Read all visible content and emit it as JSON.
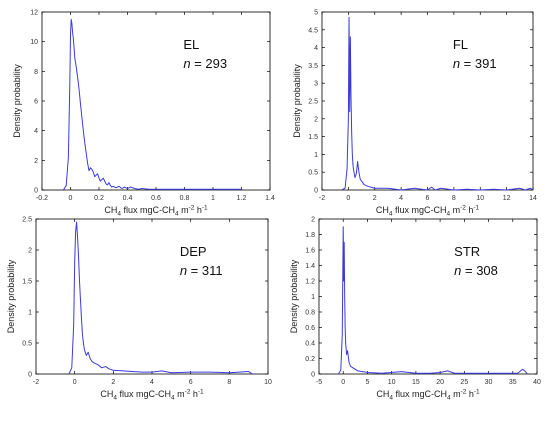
{
  "figure": {
    "x_label_template": "CH4 flux mgC-CH4 m-2 h-1",
    "ylabel": "Density probability"
  },
  "chart_data": [
    {
      "type": "line",
      "site": "EL",
      "n_prefix": "n",
      "n_text": " = 293",
      "xlabel": "CH4 flux mgC-CH4 m-2 h-1",
      "ylabel": "Density probability",
      "xlim": [
        -0.2,
        1.4
      ],
      "ylim": [
        0,
        12
      ],
      "xticks": [
        "-0.2",
        "0",
        "0.2",
        "0.4",
        "0.6",
        "0.8",
        "1",
        "1.2",
        "1.4"
      ],
      "yticks": [
        "0",
        "2",
        "4",
        "6",
        "8",
        "10",
        "12"
      ],
      "series": [
        {
          "x": [
            -0.05,
            -0.03,
            -0.015,
            -0.005,
            0.0,
            0.005,
            0.01,
            0.015,
            0.02,
            0.025,
            0.03,
            0.04,
            0.05,
            0.06,
            0.07,
            0.08,
            0.09,
            0.1,
            0.11,
            0.12,
            0.13,
            0.14,
            0.15,
            0.16,
            0.17,
            0.18,
            0.19,
            0.2,
            0.21,
            0.22,
            0.23,
            0.24,
            0.25,
            0.26,
            0.27,
            0.28,
            0.29,
            0.3,
            0.32,
            0.34,
            0.36,
            0.38,
            0.4,
            0.42,
            0.45,
            0.48,
            0.5,
            0.55,
            0.6,
            0.65,
            0.7,
            0.8,
            0.9,
            1.0,
            1.1,
            1.2
          ],
          "y": [
            0.0,
            0.3,
            2.2,
            7.0,
            10.5,
            11.5,
            11.2,
            10.6,
            10.2,
            9.6,
            8.9,
            8.3,
            7.6,
            6.8,
            5.8,
            4.9,
            4.0,
            3.2,
            2.5,
            1.8,
            1.3,
            1.5,
            1.4,
            1.2,
            0.9,
            1.0,
            1.1,
            0.8,
            0.6,
            0.7,
            0.8,
            0.6,
            0.4,
            0.35,
            0.5,
            0.3,
            0.2,
            0.25,
            0.15,
            0.25,
            0.1,
            0.2,
            0.1,
            0.2,
            0.1,
            0.05,
            0.1,
            0.05,
            0.05,
            0.05,
            0.05,
            0.05,
            0.05,
            0.05,
            0.05,
            0.05
          ]
        }
      ]
    },
    {
      "type": "line",
      "site": "FL",
      "n_prefix": "n",
      "n_text": " = 391",
      "xlabel": "CH4 flux mgC-CH4 m-2 h-1",
      "ylabel": "Density probability",
      "xlim": [
        -2,
        14
      ],
      "ylim": [
        0,
        5
      ],
      "xticks": [
        "-2",
        "0",
        "2",
        "4",
        "6",
        "8",
        "10",
        "12",
        "14"
      ],
      "yticks": [
        "0",
        "0.5",
        "1",
        "1.5",
        "2",
        "2.5",
        "3",
        "3.5",
        "4",
        "4.5",
        "5"
      ],
      "series": [
        {
          "x": [
            -0.5,
            -0.25,
            -0.1,
            0.0,
            0.05,
            0.1,
            0.15,
            0.2,
            0.25,
            0.3,
            0.35,
            0.4,
            0.5,
            0.6,
            0.7,
            0.8,
            0.9,
            1.0,
            1.2,
            1.5,
            2.0,
            2.5,
            3.0,
            4.0,
            5.0,
            6.0,
            6.3,
            6.6,
            7.0,
            8.0,
            9.0,
            10.0,
            11.0,
            12.0,
            13.0,
            13.4,
            13.8,
            14.0
          ],
          "y": [
            0.0,
            0.05,
            0.6,
            2.0,
            4.85,
            2.2,
            4.3,
            2.6,
            1.6,
            1.0,
            0.7,
            0.55,
            0.35,
            0.45,
            0.8,
            0.5,
            0.3,
            0.25,
            0.15,
            0.1,
            0.05,
            0.05,
            0.05,
            0.0,
            0.05,
            0.0,
            0.08,
            0.0,
            0.05,
            0.0,
            0.02,
            0.0,
            0.02,
            0.0,
            0.05,
            0.0,
            0.05,
            0.0
          ]
        }
      ]
    },
    {
      "type": "line",
      "site": "DEP",
      "n_prefix": "n",
      "n_text": " = 311",
      "xlabel": "CH4 flux mgC-CH4 m-2 h-1",
      "ylabel": "Density probability",
      "xlim": [
        -2,
        10
      ],
      "ylim": [
        0,
        2.5
      ],
      "xticks": [
        "-2",
        "0",
        "2",
        "4",
        "6",
        "8",
        "10"
      ],
      "yticks": [
        "0",
        "0.5",
        "1",
        "1.5",
        "2",
        "2.5"
      ],
      "series": [
        {
          "x": [
            -0.3,
            -0.15,
            -0.05,
            0.0,
            0.05,
            0.1,
            0.15,
            0.2,
            0.25,
            0.3,
            0.35,
            0.4,
            0.45,
            0.5,
            0.6,
            0.7,
            0.8,
            0.9,
            1.0,
            1.2,
            1.4,
            1.6,
            1.8,
            2.0,
            2.5,
            3.0,
            3.5,
            4.0,
            4.5,
            5.0,
            6.0,
            7.0,
            8.0,
            8.5,
            9.0,
            9.2
          ],
          "y": [
            0.0,
            0.1,
            0.8,
            1.8,
            2.3,
            2.45,
            2.2,
            1.9,
            1.5,
            1.2,
            0.9,
            0.65,
            0.5,
            0.4,
            0.3,
            0.35,
            0.25,
            0.2,
            0.18,
            0.15,
            0.1,
            0.12,
            0.08,
            0.06,
            0.05,
            0.04,
            0.03,
            0.03,
            0.05,
            0.02,
            0.03,
            0.03,
            0.02,
            0.03,
            0.04,
            0.0
          ]
        }
      ]
    },
    {
      "type": "line",
      "site": "STR",
      "n_prefix": "n",
      "n_text": " = 308",
      "xlabel": "CH4 flux mgC-CH4 m-2 h-1",
      "ylabel": "Density probability",
      "xlim": [
        -5,
        40
      ],
      "ylim": [
        0,
        2
      ],
      "xticks": [
        "-5",
        "0",
        "5",
        "10",
        "15",
        "20",
        "25",
        "30",
        "35",
        "40"
      ],
      "yticks": [
        "0",
        "0.2",
        "0.4",
        "0.6",
        "0.8",
        "1",
        "1.2",
        "1.4",
        "1.6",
        "1.8",
        "2"
      ],
      "series": [
        {
          "x": [
            -1.0,
            -0.5,
            -0.2,
            0.0,
            0.1,
            0.2,
            0.3,
            0.4,
            0.5,
            0.7,
            0.9,
            1.2,
            1.5,
            2.0,
            2.5,
            3.0,
            4.0,
            5.0,
            8.0,
            12.0,
            15.0,
            18.0,
            20.0,
            21.5,
            23.0,
            26.0,
            30.0,
            33.0,
            36.0,
            37.0,
            37.5,
            38.0
          ],
          "y": [
            0.0,
            0.05,
            0.5,
            1.9,
            1.2,
            1.7,
            1.0,
            0.6,
            0.4,
            0.25,
            0.3,
            0.15,
            0.1,
            0.08,
            0.06,
            0.04,
            0.03,
            0.02,
            0.01,
            0.03,
            0.01,
            0.01,
            0.02,
            0.04,
            0.01,
            0.01,
            0.01,
            0.01,
            0.01,
            0.06,
            0.04,
            0.0
          ]
        }
      ]
    }
  ]
}
